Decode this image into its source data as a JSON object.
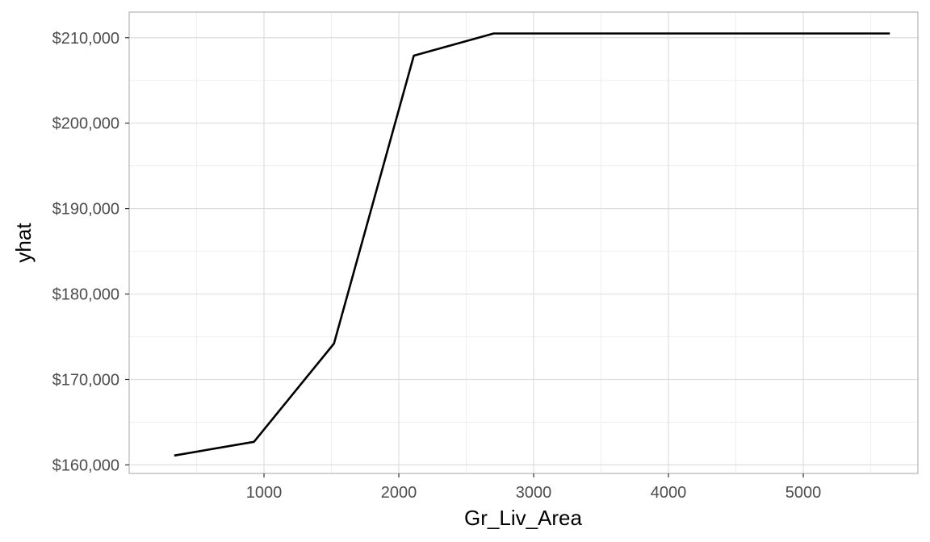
{
  "chart_data": {
    "type": "line",
    "title": "",
    "xlabel": "Gr_Liv_Area",
    "ylabel": "yhat",
    "xlim": [
      0,
      5850
    ],
    "ylim": [
      159000,
      213000
    ],
    "x_ticks": [
      1000,
      2000,
      3000,
      4000,
      5000
    ],
    "x_tick_labels": [
      "1000",
      "2000",
      "3000",
      "4000",
      "5000"
    ],
    "y_ticks": [
      160000,
      170000,
      180000,
      190000,
      200000,
      210000
    ],
    "y_tick_labels": [
      "$160,000",
      "$170,000",
      "$180,000",
      "$190,000",
      "$200,000",
      "$210,000"
    ],
    "grid": true,
    "legend": "none",
    "series": [
      {
        "color": "#000000",
        "x": [
          334,
          926,
          1519,
          2111,
          2704,
          3296,
          3889,
          4481,
          5074,
          5642
        ],
        "y": [
          161100,
          162700,
          174200,
          207900,
          210500,
          210500,
          210500,
          210500,
          210500,
          210500
        ]
      }
    ]
  }
}
